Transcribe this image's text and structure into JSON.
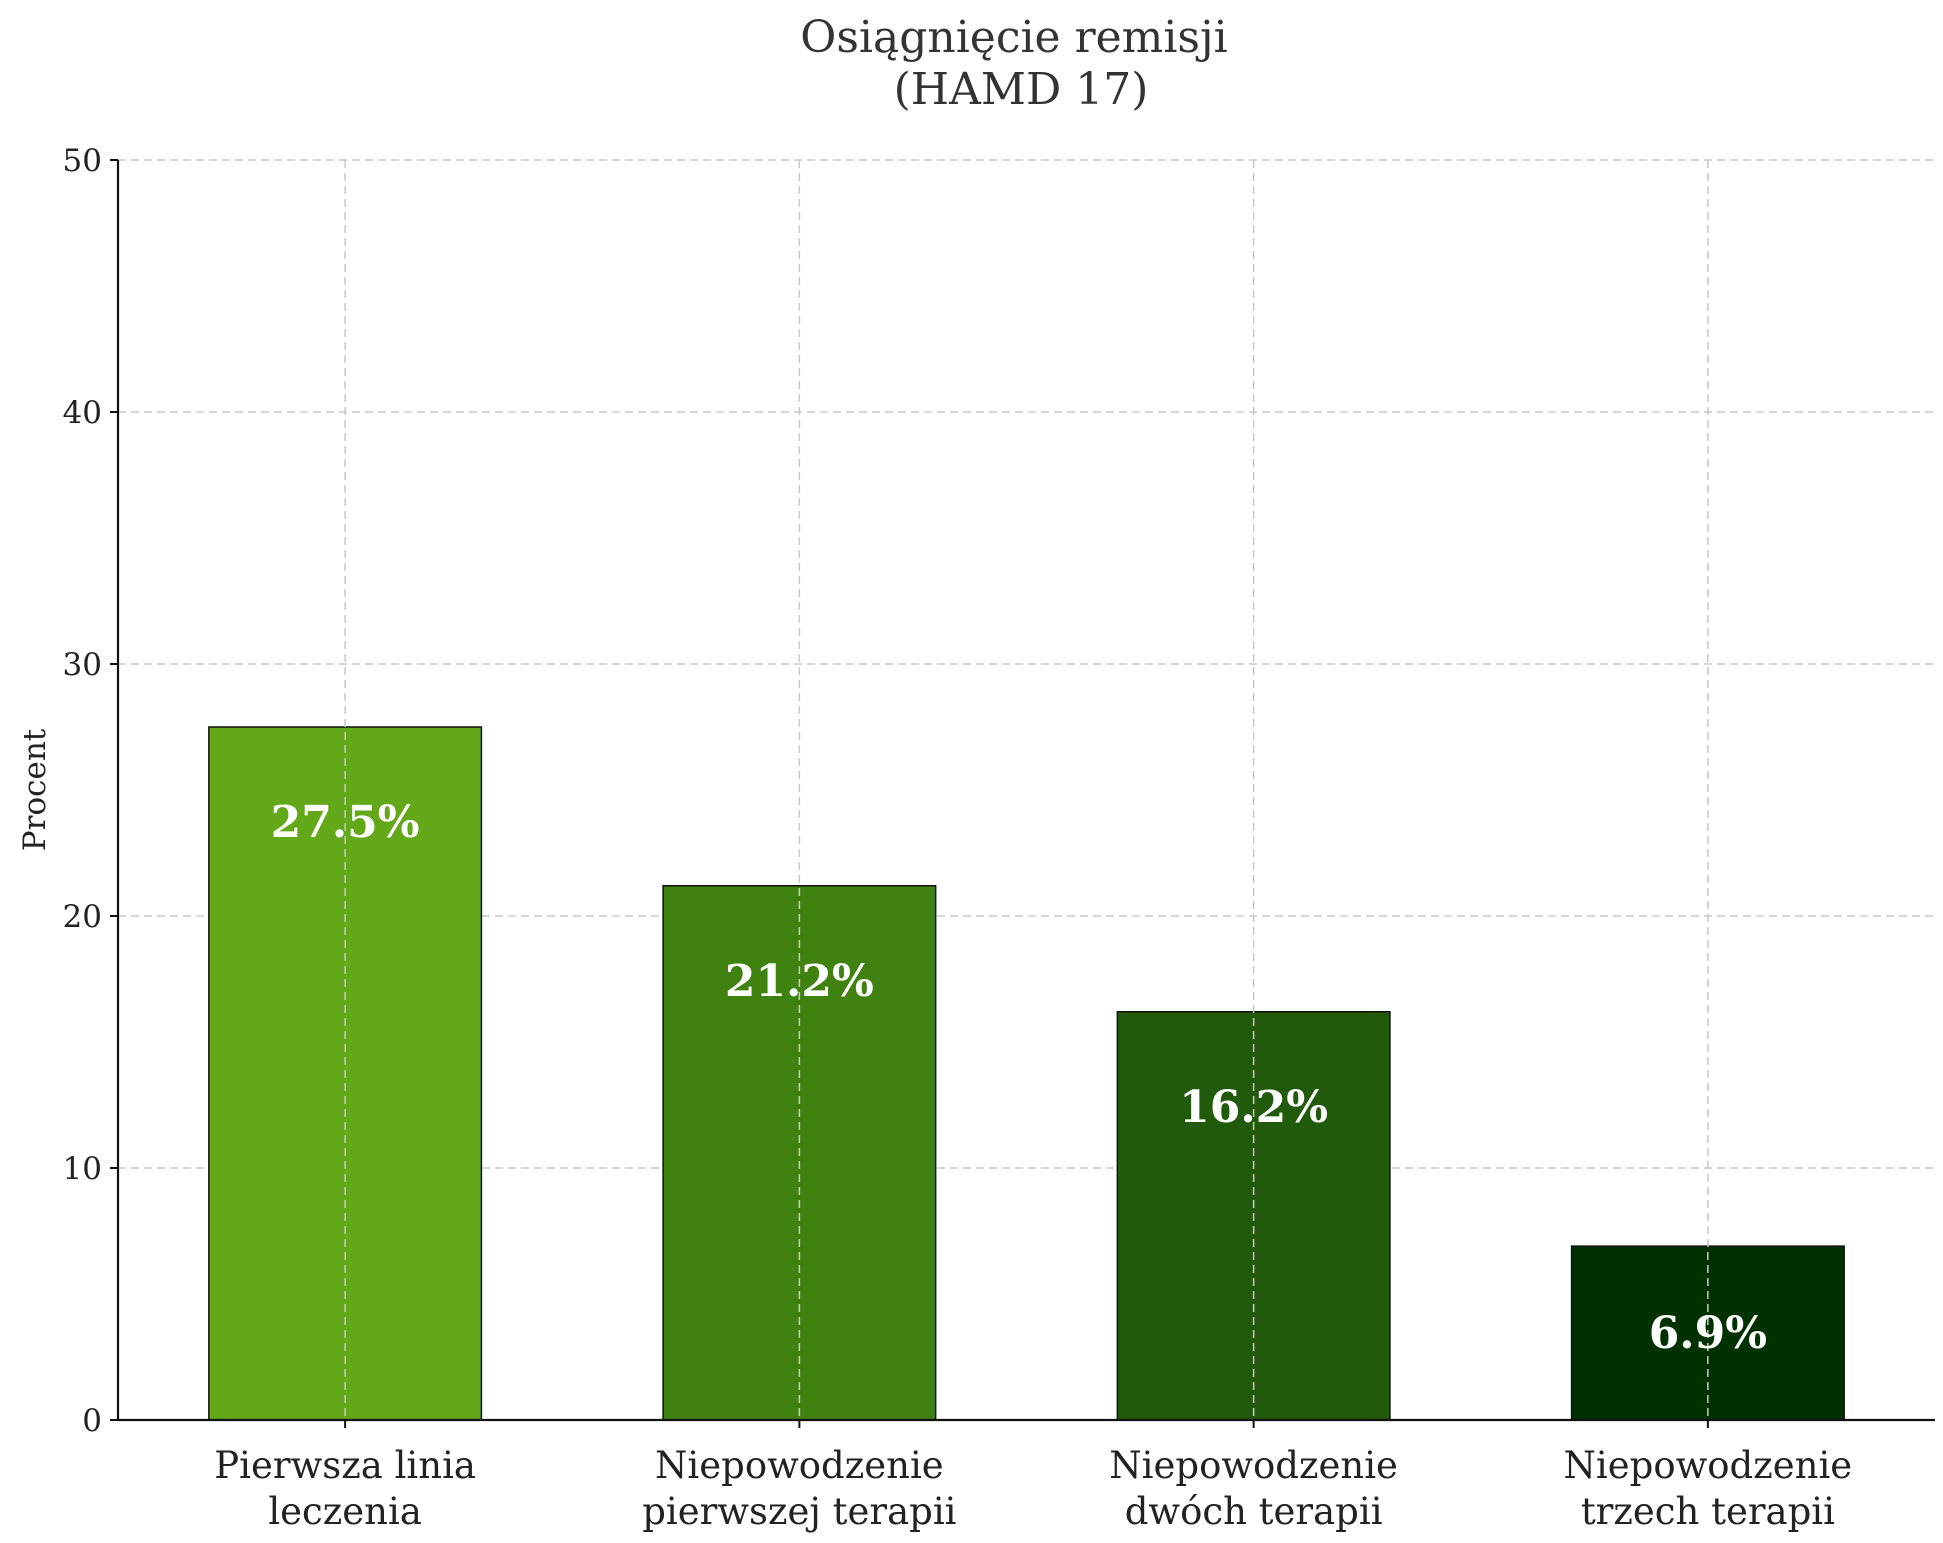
{
  "chart_data": {
    "type": "bar",
    "title_lines": [
      "Osiągnięcie remisji",
      "(HAMD 17)"
    ],
    "ylabel": "Procent",
    "xlabel": "",
    "ylim": [
      0,
      50
    ],
    "yticks": [
      0,
      10,
      20,
      30,
      40,
      50
    ],
    "grid": true,
    "categories": [
      [
        "Pierwsza linia",
        "leczenia"
      ],
      [
        "Niepowodzenie",
        "pierwszej terapii"
      ],
      [
        "Niepowodzenie",
        "dwóch terapii"
      ],
      [
        "Niepowodzenie",
        "trzech terapii"
      ]
    ],
    "values": [
      27.5,
      21.2,
      16.2,
      6.9
    ],
    "value_labels": [
      "27.5%",
      "21.2%",
      "16.2%",
      "6.9%"
    ],
    "colors": [
      "#62a818",
      "#408210",
      "#215a0a",
      "#003200"
    ]
  }
}
